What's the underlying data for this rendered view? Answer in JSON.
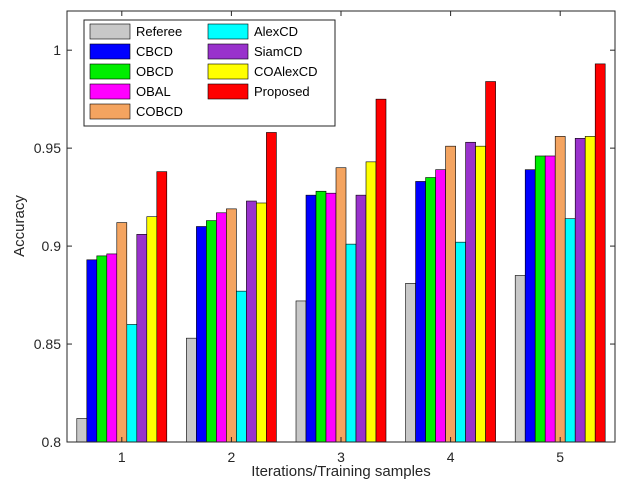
{
  "chart_data": {
    "type": "bar",
    "title": "",
    "xlabel": "Iterations/Training samples",
    "ylabel": "Accuracy",
    "categories": [
      "1",
      "2",
      "3",
      "4",
      "5"
    ],
    "ylim": [
      0.8,
      1.02
    ],
    "yticks": [
      "0.8",
      "0.85",
      "0.9",
      "0.95",
      "1"
    ],
    "grid": false,
    "legend_position": "top-left",
    "series": [
      {
        "name": "Referee",
        "color": "#c8c8c8",
        "values": [
          0.812,
          0.853,
          0.872,
          0.881,
          0.885
        ]
      },
      {
        "name": "CBCD",
        "color": "#0000ff",
        "values": [
          0.893,
          0.91,
          0.926,
          0.933,
          0.939
        ]
      },
      {
        "name": "OBCD",
        "color": "#00ee00",
        "values": [
          0.895,
          0.913,
          0.928,
          0.935,
          0.946
        ]
      },
      {
        "name": "OBAL",
        "color": "#ff00ff",
        "values": [
          0.896,
          0.917,
          0.927,
          0.939,
          0.946
        ]
      },
      {
        "name": "COBCD",
        "color": "#f4a460",
        "values": [
          0.912,
          0.919,
          0.94,
          0.951,
          0.956
        ]
      },
      {
        "name": "AlexCD",
        "color": "#00ffff",
        "values": [
          0.86,
          0.877,
          0.901,
          0.902,
          0.914
        ]
      },
      {
        "name": "SiamCD",
        "color": "#9932cc",
        "values": [
          0.906,
          0.923,
          0.926,
          0.953,
          0.955
        ]
      },
      {
        "name": "COAlexCD",
        "color": "#ffff00",
        "values": [
          0.915,
          0.922,
          0.943,
          0.951,
          0.956
        ]
      },
      {
        "name": "Proposed",
        "color": "#ff0000",
        "values": [
          0.938,
          0.958,
          0.975,
          0.984,
          0.993
        ]
      }
    ]
  }
}
